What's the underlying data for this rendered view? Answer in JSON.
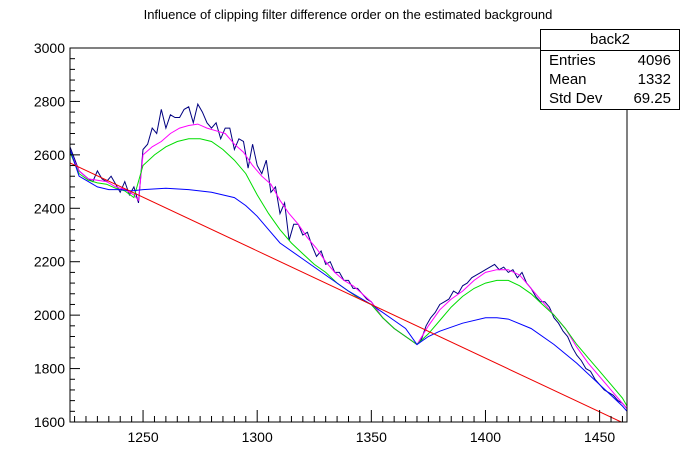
{
  "chart_data": {
    "type": "line",
    "title": "Influence of clipping filter difference order on the estimated background",
    "xlabel": "",
    "ylabel": "",
    "xlim": [
      1218,
      1462
    ],
    "ylim": [
      1600,
      3000
    ],
    "x_ticks": [
      1250,
      1300,
      1350,
      1400,
      1450
    ],
    "y_ticks": [
      1600,
      1800,
      2000,
      2200,
      2400,
      2600,
      2800,
      3000
    ],
    "grid": false,
    "stats_box": {
      "title": "back2",
      "rows": [
        {
          "label": "Entries",
          "value": "4096"
        },
        {
          "label": "Mean",
          "value": "1332"
        },
        {
          "label": "Std Dev",
          "value": "69.25"
        }
      ]
    },
    "series": [
      {
        "color": "#000080",
        "x": [
          1218,
          1222,
          1226,
          1228,
          1230,
          1232,
          1234,
          1236,
          1238,
          1240,
          1242,
          1244,
          1246,
          1248,
          1250,
          1252,
          1254,
          1256,
          1258,
          1260,
          1262,
          1264,
          1266,
          1268,
          1270,
          1272,
          1274,
          1276,
          1278,
          1280,
          1282,
          1284,
          1286,
          1288,
          1290,
          1292,
          1294,
          1296,
          1298,
          1300,
          1302,
          1304,
          1306,
          1308,
          1310,
          1312,
          1314,
          1316,
          1318,
          1320,
          1322,
          1324,
          1326,
          1328,
          1330,
          1332,
          1334,
          1336,
          1338,
          1340,
          1342,
          1344,
          1346,
          1348,
          1350,
          1355,
          1360,
          1365,
          1370,
          1372,
          1374,
          1376,
          1378,
          1380,
          1382,
          1384,
          1386,
          1388,
          1390,
          1392,
          1394,
          1396,
          1398,
          1400,
          1402,
          1404,
          1406,
          1408,
          1410,
          1412,
          1414,
          1416,
          1418,
          1420,
          1422,
          1424,
          1426,
          1428,
          1430,
          1432,
          1434,
          1436,
          1438,
          1440,
          1442,
          1444,
          1446,
          1448,
          1450,
          1452,
          1454,
          1456,
          1458,
          1460,
          1462
        ],
        "values": [
          2630,
          2540,
          2510,
          2500,
          2540,
          2510,
          2500,
          2520,
          2490,
          2460,
          2500,
          2450,
          2480,
          2420,
          2620,
          2640,
          2700,
          2680,
          2770,
          2700,
          2750,
          2740,
          2740,
          2770,
          2780,
          2720,
          2790,
          2760,
          2720,
          2700,
          2720,
          2660,
          2700,
          2700,
          2620,
          2660,
          2650,
          2550,
          2640,
          2560,
          2530,
          2580,
          2460,
          2480,
          2380,
          2420,
          2280,
          2340,
          2340,
          2300,
          2310,
          2260,
          2220,
          2240,
          2190,
          2200,
          2160,
          2160,
          2130,
          2130,
          2100,
          2100,
          2080,
          2060,
          2050,
          1990,
          1950,
          1920,
          1890,
          1910,
          1960,
          1990,
          2010,
          2040,
          2050,
          2060,
          2090,
          2080,
          2110,
          2120,
          2140,
          2150,
          2160,
          2170,
          2180,
          2190,
          2170,
          2180,
          2160,
          2170,
          2140,
          2160,
          2120,
          2100,
          2070,
          2050,
          2050,
          2030,
          1990,
          1970,
          1940,
          1920,
          1880,
          1850,
          1830,
          1800,
          1790,
          1760,
          1740,
          1720,
          1710,
          1700,
          1680,
          1670,
          1650
        ]
      },
      {
        "color": "#ff00ff",
        "x": [
          1218,
          1222,
          1226,
          1230,
          1234,
          1238,
          1242,
          1246,
          1248,
          1250,
          1254,
          1258,
          1262,
          1266,
          1270,
          1274,
          1278,
          1282,
          1286,
          1290,
          1294,
          1298,
          1302,
          1306,
          1310,
          1314,
          1318,
          1322,
          1326,
          1330,
          1334,
          1338,
          1342,
          1346,
          1350,
          1355,
          1360,
          1365,
          1370,
          1375,
          1380,
          1385,
          1390,
          1395,
          1400,
          1405,
          1410,
          1415,
          1420,
          1425,
          1430,
          1435,
          1440,
          1445,
          1450,
          1455,
          1460,
          1462
        ],
        "values": [
          2610,
          2540,
          2510,
          2505,
          2500,
          2480,
          2470,
          2450,
          2430,
          2600,
          2630,
          2650,
          2680,
          2700,
          2710,
          2715,
          2700,
          2690,
          2680,
          2640,
          2610,
          2560,
          2520,
          2490,
          2430,
          2380,
          2340,
          2290,
          2250,
          2200,
          2160,
          2130,
          2110,
          2080,
          2050,
          1990,
          1950,
          1920,
          1890,
          1960,
          2020,
          2060,
          2090,
          2130,
          2160,
          2170,
          2170,
          2150,
          2100,
          2050,
          2000,
          1950,
          1880,
          1820,
          1770,
          1720,
          1670,
          1650
        ]
      },
      {
        "color": "#00dd00",
        "x": [
          1218,
          1222,
          1226,
          1230,
          1234,
          1238,
          1242,
          1246,
          1250,
          1255,
          1260,
          1265,
          1270,
          1275,
          1280,
          1285,
          1290,
          1295,
          1300,
          1305,
          1310,
          1315,
          1320,
          1325,
          1330,
          1335,
          1340,
          1345,
          1350,
          1355,
          1360,
          1365,
          1370,
          1375,
          1380,
          1385,
          1390,
          1395,
          1400,
          1405,
          1410,
          1415,
          1420,
          1425,
          1430,
          1435,
          1440,
          1445,
          1450,
          1455,
          1460,
          1462
        ],
        "values": [
          2610,
          2530,
          2505,
          2495,
          2490,
          2475,
          2465,
          2440,
          2560,
          2600,
          2630,
          2650,
          2660,
          2660,
          2650,
          2620,
          2580,
          2530,
          2450,
          2380,
          2320,
          2270,
          2230,
          2190,
          2160,
          2120,
          2090,
          2060,
          2040,
          1990,
          1950,
          1920,
          1890,
          1930,
          1980,
          2030,
          2070,
          2100,
          2120,
          2130,
          2130,
          2110,
          2080,
          2040,
          2000,
          1950,
          1890,
          1840,
          1790,
          1740,
          1690,
          1660
        ]
      },
      {
        "color": "#0000ff",
        "x": [
          1218,
          1222,
          1226,
          1230,
          1235,
          1240,
          1245,
          1250,
          1260,
          1270,
          1280,
          1290,
          1295,
          1300,
          1305,
          1310,
          1320,
          1330,
          1340,
          1350,
          1360,
          1365,
          1370,
          1375,
          1380,
          1390,
          1400,
          1405,
          1410,
          1420,
          1430,
          1440,
          1450,
          1455,
          1460,
          1462
        ],
        "values": [
          2620,
          2520,
          2500,
          2480,
          2470,
          2470,
          2465,
          2470,
          2475,
          2470,
          2460,
          2440,
          2410,
          2370,
          2320,
          2270,
          2210,
          2150,
          2090,
          2040,
          1980,
          1950,
          1890,
          1920,
          1940,
          1970,
          1990,
          1990,
          1985,
          1950,
          1890,
          1820,
          1740,
          1700,
          1660,
          1640
        ]
      },
      {
        "color": "#ee0000",
        "x": [
          1218,
          1462
        ],
        "values": [
          2570,
          1590
        ]
      }
    ]
  }
}
